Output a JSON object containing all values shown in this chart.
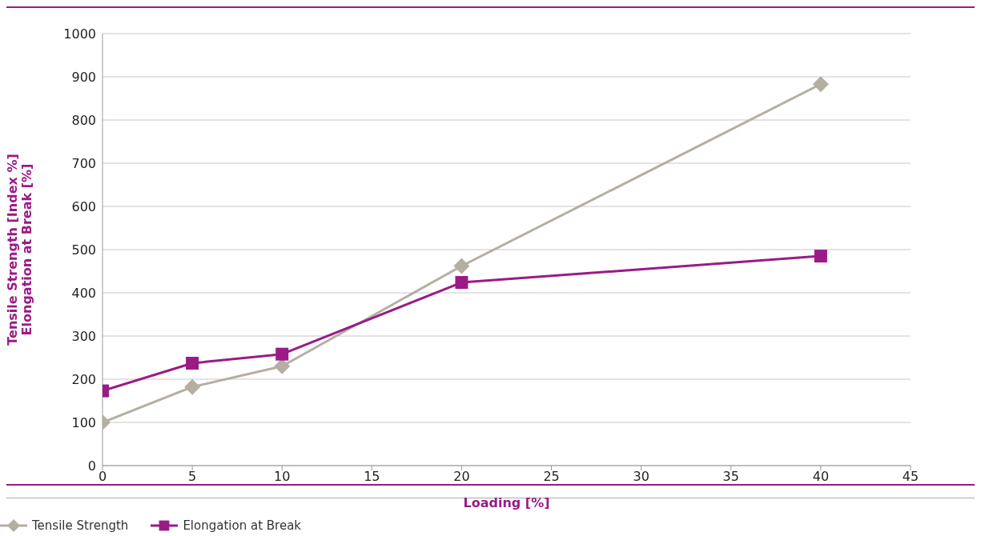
{
  "chart_data": {
    "type": "line",
    "xlabel": "Loading [%]",
    "ylabel": "Tensile Strength [Index %]\nElongation at Break [%]",
    "x": [
      0,
      5,
      10,
      20,
      40
    ],
    "series": [
      {
        "name": "Tensile Strength",
        "color": "#b5aea3",
        "marker": "diamond",
        "values": [
          100,
          182,
          230,
          462,
          883
        ]
      },
      {
        "name": "Elongation at Break",
        "color": "#9a1b86",
        "marker": "square",
        "values": [
          173,
          237,
          258,
          424,
          485
        ]
      }
    ],
    "xlim": [
      0,
      45
    ],
    "xticks": [
      0,
      5,
      10,
      15,
      20,
      25,
      30,
      35,
      40,
      45
    ],
    "ylim": [
      0,
      1000
    ],
    "yticks": [
      0,
      100,
      200,
      300,
      400,
      500,
      600,
      700,
      800,
      900,
      1000
    ],
    "grid": "y",
    "legend": "bottom left",
    "line_style": "solid"
  }
}
